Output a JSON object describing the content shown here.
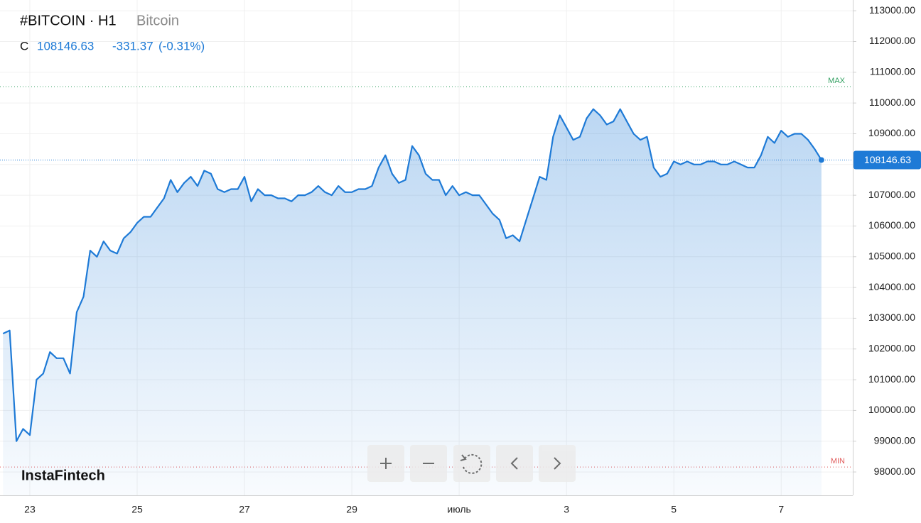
{
  "header": {
    "symbol": "#BITCOIN · H1",
    "name": "Bitcoin",
    "close_prefix": "C",
    "change": -331.37,
    "change_pct": "(-0.31%)"
  },
  "watermark": "InstaFintech",
  "chart_data": {
    "type": "area",
    "categories": [
      null,
      null,
      null,
      null,
      "23",
      null,
      null,
      null,
      null,
      null,
      null,
      null,
      null,
      null,
      null,
      null,
      null,
      null,
      null,
      null,
      "25",
      null,
      null,
      null,
      null,
      null,
      null,
      null,
      null,
      null,
      null,
      null,
      null,
      null,
      null,
      null,
      "27",
      null,
      null,
      null,
      null,
      null,
      null,
      null,
      null,
      null,
      null,
      null,
      null,
      null,
      null,
      null,
      "29",
      null,
      null,
      null,
      null,
      null,
      null,
      null,
      null,
      null,
      null,
      null,
      null,
      null,
      null,
      null,
      "июль",
      null,
      null,
      null,
      null,
      null,
      null,
      null,
      null,
      null,
      null,
      null,
      null,
      null,
      null,
      null,
      "3",
      null,
      null,
      null,
      null,
      null,
      null,
      null,
      null,
      null,
      null,
      null,
      null,
      null,
      null,
      null,
      "5",
      null,
      null,
      null,
      null,
      null,
      null,
      null,
      null,
      null,
      null,
      null,
      null,
      null,
      null,
      null,
      "7",
      null,
      null,
      null,
      null,
      null,
      null
    ],
    "series": [
      {
        "name": "Bitcoin",
        "color": "#1e7ad6",
        "values": [
          102500,
          102600,
          99000,
          99400,
          99200,
          101000,
          101200,
          101900,
          101700,
          101700,
          101200,
          103200,
          103700,
          105200,
          105000,
          105500,
          105200,
          105100,
          105600,
          105800,
          106100,
          106300,
          106300,
          106600,
          106900,
          107500,
          107100,
          107400,
          107600,
          107300,
          107800,
          107700,
          107200,
          107100,
          107200,
          107200,
          107600,
          106800,
          107200,
          107000,
          107000,
          106900,
          106900,
          106800,
          107000,
          107000,
          107100,
          107300,
          107100,
          107000,
          107300,
          107100,
          107100,
          107200,
          107200,
          107300,
          107900,
          108300,
          107700,
          107400,
          107500,
          108600,
          108300,
          107700,
          107500,
          107500,
          107000,
          107300,
          107000,
          107100,
          107000,
          107000,
          106700,
          106400,
          106200,
          105600,
          105700,
          105500,
          106200,
          106900,
          107600,
          107500,
          108900,
          109600,
          109200,
          108800,
          108900,
          109500,
          109800,
          109600,
          109300,
          109400,
          109800,
          109400,
          109000,
          108800,
          108900,
          107900,
          107600,
          107700,
          108100,
          108000,
          108100,
          108000,
          108000,
          108100,
          108100,
          108000,
          108000,
          108100,
          108000,
          107900,
          107900,
          108300,
          108900,
          108700,
          109100,
          108900,
          109000,
          109000,
          108800,
          108500,
          108146.63
        ]
      }
    ],
    "ylim": [
      97240,
      113350
    ],
    "yticks": [
      {
        "value": 98000,
        "label": "98000.00"
      },
      {
        "value": 99000,
        "label": "99000.00"
      },
      {
        "value": 100000,
        "label": "100000.00"
      },
      {
        "value": 101000,
        "label": "101000.00"
      },
      {
        "value": 102000,
        "label": "102000.00"
      },
      {
        "value": 103000,
        "label": "103000.00"
      },
      {
        "value": 104000,
        "label": "104000.00"
      },
      {
        "value": 105000,
        "label": "105000.00"
      },
      {
        "value": 106000,
        "label": "106000.00"
      },
      {
        "value": 107000,
        "label": "107000.00"
      },
      {
        "value": 108000,
        "label": "108000.00"
      },
      {
        "value": 109000,
        "label": "109000.00"
      },
      {
        "value": 110000,
        "label": "110000.00"
      },
      {
        "value": 111000,
        "label": "111000.00"
      },
      {
        "value": 112000,
        "label": "112000.00"
      },
      {
        "value": 113000,
        "label": "113000.00"
      }
    ],
    "grid": true,
    "max_line": {
      "label": "MAX",
      "value": 110530,
      "color": "#2e9e5e"
    },
    "min_line": {
      "label": "MIN",
      "value": 98161,
      "color": "#e05a5a"
    }
  }
}
